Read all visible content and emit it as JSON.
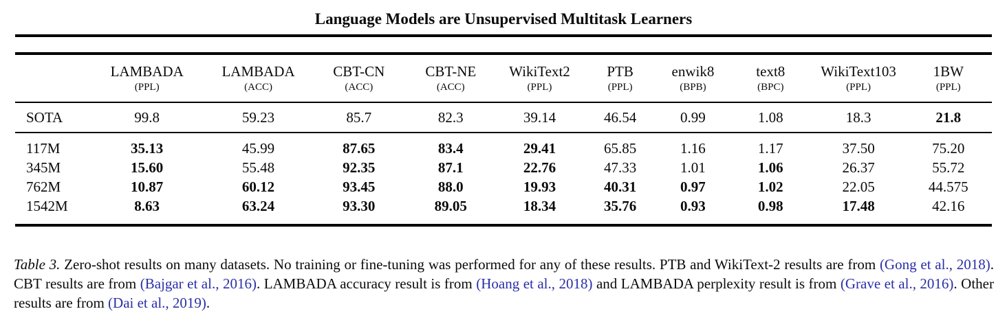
{
  "page": {
    "title": "Language Models are Unsupervised Multitask Learners"
  },
  "table": {
    "columns": [
      {
        "name": "",
        "unit": ""
      },
      {
        "name": "LAMBADA",
        "unit": "(PPL)"
      },
      {
        "name": "LAMBADA",
        "unit": "(ACC)"
      },
      {
        "name": "CBT-CN",
        "unit": "(ACC)"
      },
      {
        "name": "CBT-NE",
        "unit": "(ACC)"
      },
      {
        "name": "WikiText2",
        "unit": "(PPL)"
      },
      {
        "name": "PTB",
        "unit": "(PPL)"
      },
      {
        "name": "enwik8",
        "unit": "(BPB)"
      },
      {
        "name": "text8",
        "unit": "(BPC)"
      },
      {
        "name": "WikiText103",
        "unit": "(PPL)"
      },
      {
        "name": "1BW",
        "unit": "(PPL)"
      }
    ],
    "sota_row": {
      "label": "SOTA",
      "values": [
        "99.8",
        "59.23",
        "85.7",
        "82.3",
        "39.14",
        "46.54",
        "0.99",
        "1.08",
        "18.3",
        "21.8"
      ],
      "bold": [
        false,
        false,
        false,
        false,
        false,
        false,
        false,
        false,
        false,
        true
      ]
    },
    "model_rows": [
      {
        "label": "117M",
        "values": [
          "35.13",
          "45.99",
          "87.65",
          "83.4",
          "29.41",
          "65.85",
          "1.16",
          "1.17",
          "37.50",
          "75.20"
        ],
        "bold": [
          true,
          false,
          true,
          true,
          true,
          false,
          false,
          false,
          false,
          false
        ]
      },
      {
        "label": "345M",
        "values": [
          "15.60",
          "55.48",
          "92.35",
          "87.1",
          "22.76",
          "47.33",
          "1.01",
          "1.06",
          "26.37",
          "55.72"
        ],
        "bold": [
          true,
          false,
          true,
          true,
          true,
          false,
          false,
          true,
          false,
          false
        ]
      },
      {
        "label": "762M",
        "values": [
          "10.87",
          "60.12",
          "93.45",
          "88.0",
          "19.93",
          "40.31",
          "0.97",
          "1.02",
          "22.05",
          "44.575"
        ],
        "bold": [
          true,
          true,
          true,
          true,
          true,
          true,
          true,
          true,
          false,
          false
        ]
      },
      {
        "label": "1542M",
        "values": [
          "8.63",
          "63.24",
          "93.30",
          "89.05",
          "18.34",
          "35.76",
          "0.93",
          "0.98",
          "17.48",
          "42.16"
        ],
        "bold": [
          true,
          true,
          true,
          true,
          true,
          true,
          true,
          true,
          true,
          false
        ]
      }
    ]
  },
  "caption": {
    "segments": [
      {
        "style": "label",
        "text": "Table 3."
      },
      {
        "style": "text",
        "text": " Zero-shot results on many datasets. No training or fine-tuning was performed for any of these results. PTB and WikiText-2 results are from "
      },
      {
        "style": "cite",
        "text": "(Gong et al., 2018)"
      },
      {
        "style": "text",
        "text": ". CBT results are from "
      },
      {
        "style": "cite",
        "text": "(Bajgar et al., 2016)"
      },
      {
        "style": "text",
        "text": ". LAMBADA accuracy result is from "
      },
      {
        "style": "cite",
        "text": "(Hoang et al., 2018)"
      },
      {
        "style": "text",
        "text": " and LAMBADA perplexity result is from "
      },
      {
        "style": "cite",
        "text": "(Grave et al., 2016)"
      },
      {
        "style": "text",
        "text": ". Other results are from "
      },
      {
        "style": "cite",
        "text": "(Dai et al., 2019)"
      },
      {
        "style": "text",
        "text": "."
      }
    ]
  },
  "colors": {
    "text": "#0a0a0a",
    "citation": "#2a2fa6",
    "rule": "#000000"
  }
}
